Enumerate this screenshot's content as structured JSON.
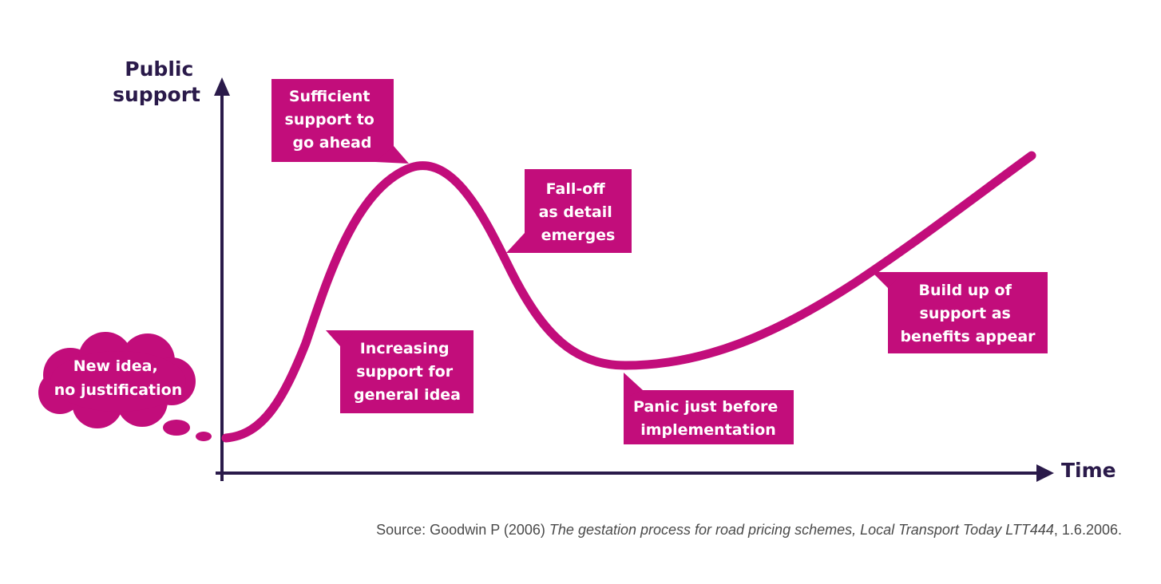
{
  "axes": {
    "y_label": [
      "Public",
      "support"
    ],
    "x_label": "Time"
  },
  "callouts": {
    "new_idea": [
      "New idea,",
      "no justification"
    ],
    "increasing": [
      "Increasing",
      "support for",
      "general idea"
    ],
    "sufficient": [
      "Sufficient",
      "support to",
      "go ahead"
    ],
    "fall_off": [
      "Fall-off",
      "as detail",
      "emerges"
    ],
    "panic": [
      "Panic just before",
      "implementation"
    ],
    "build_up": [
      "Build up of",
      "support as",
      "benefits appear"
    ]
  },
  "source": {
    "prefix": "Source: Goodwin P (2006) ",
    "title": "The gestation process for road pricing schemes, Local Transport Today LTT444",
    "suffix": ", 1.6.2006."
  },
  "colors": {
    "accent": "#c20d7b",
    "axis": "#2a1a4a",
    "callout_text": "#ffffff",
    "source_text": "#4a4a4a"
  }
}
